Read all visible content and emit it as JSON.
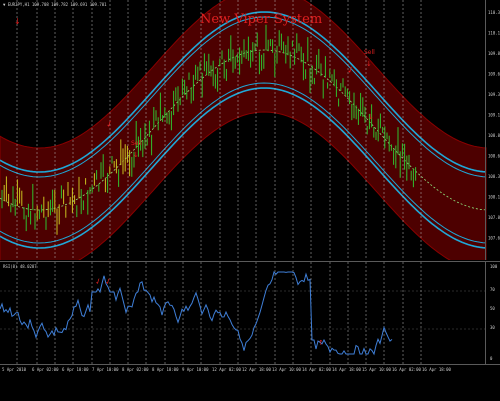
{
  "header": {
    "symbol_line": "▼ EURJPY,H1  109.708 109.782 109.691 109.701",
    "title": "New Viper System",
    "indicator_label": "RSI(8) 48.0287"
  },
  "annotations": {
    "sell_label": "Sell",
    "sell_label_2": "Sell"
  },
  "price_axis": [
    "110.35",
    "110.10",
    "109.85",
    "109.60",
    "109.35",
    "109.10",
    "108.85",
    "108.60",
    "108.35",
    "108.10",
    "107.85",
    "107.60"
  ],
  "rsi_axis": [
    "100",
    "70",
    "50",
    "30",
    "0"
  ],
  "time_axis": [
    "5 Apr 2010",
    "6 Apr 02:00",
    "6 Apr 18:00",
    "7 Apr 10:00",
    "8 Apr 02:00",
    "8 Apr 18:00",
    "9 Apr 10:00",
    "12 Apr 02:00",
    "12 Apr 18:00",
    "13 Apr 10:00",
    "14 Apr 02:00",
    "14 Apr 18:00",
    "15 Apr 10:00",
    "16 Apr 02:00",
    "16 Apr 18:00"
  ],
  "colors": {
    "background": "#000000",
    "candle": "#2fbf2f",
    "band_outer": "#6b0000",
    "band_inner": "#1fa8d8",
    "midline": "#7fd36b",
    "rsi_line": "#3f7fd8",
    "arrow": "#e02020",
    "title": "#e02020"
  }
}
